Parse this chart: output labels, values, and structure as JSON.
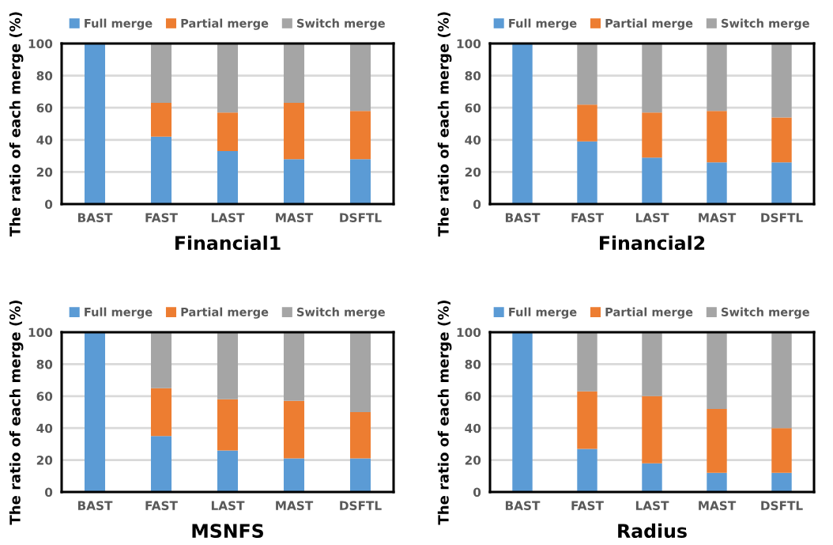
{
  "chart_data": [
    {
      "type": "bar",
      "stacked": true,
      "title": "Financial1",
      "ylabel": "The ratio of each merge (%)",
      "categories": [
        "BAST",
        "FAST",
        "LAST",
        "MAST",
        "DSFTL"
      ],
      "ylim": [
        0,
        100
      ],
      "yticks": [
        0,
        20,
        40,
        60,
        80,
        100
      ],
      "grid": "y",
      "legend": "top",
      "series": [
        {
          "name": "Full merge",
          "color": "#5b9bd5",
          "values": [
            100,
            42,
            33,
            28,
            28
          ]
        },
        {
          "name": "Partial merge",
          "color": "#ed7d31",
          "values": [
            0,
            21,
            24,
            35,
            30
          ]
        },
        {
          "name": "Switch merge",
          "color": "#a5a5a5",
          "values": [
            0,
            37,
            43,
            37,
            42
          ]
        }
      ]
    },
    {
      "type": "bar",
      "stacked": true,
      "title": "Financial2",
      "ylabel": "The ratio of each merge (%)",
      "categories": [
        "BAST",
        "FAST",
        "LAST",
        "MAST",
        "DSFTL"
      ],
      "ylim": [
        0,
        100
      ],
      "yticks": [
        0,
        20,
        40,
        60,
        80,
        100
      ],
      "grid": "y",
      "legend": "top",
      "series": [
        {
          "name": "Full merge",
          "color": "#5b9bd5",
          "values": [
            100,
            39,
            29,
            26,
            26
          ]
        },
        {
          "name": "Partial merge",
          "color": "#ed7d31",
          "values": [
            0,
            23,
            28,
            32,
            28
          ]
        },
        {
          "name": "Switch merge",
          "color": "#a5a5a5",
          "values": [
            0,
            38,
            43,
            42,
            46
          ]
        }
      ]
    },
    {
      "type": "bar",
      "stacked": true,
      "title": "MSNFS",
      "ylabel": "The ratio of each merge (%)",
      "categories": [
        "BAST",
        "FAST",
        "LAST",
        "MAST",
        "DSFTL"
      ],
      "ylim": [
        0,
        100
      ],
      "yticks": [
        0,
        20,
        40,
        60,
        80,
        100
      ],
      "grid": "y",
      "legend": "top",
      "series": [
        {
          "name": "Full merge",
          "color": "#5b9bd5",
          "values": [
            100,
            35,
            26,
            21,
            21
          ]
        },
        {
          "name": "Partial merge",
          "color": "#ed7d31",
          "values": [
            0,
            30,
            32,
            36,
            29
          ]
        },
        {
          "name": "Switch merge",
          "color": "#a5a5a5",
          "values": [
            0,
            35,
            42,
            43,
            50
          ]
        }
      ]
    },
    {
      "type": "bar",
      "stacked": true,
      "title": "Radius",
      "ylabel": "The ratio of each merge (%)",
      "categories": [
        "BAST",
        "FAST",
        "LAST",
        "MAST",
        "DSFTL"
      ],
      "ylim": [
        0,
        100
      ],
      "yticks": [
        0,
        20,
        40,
        60,
        80,
        100
      ],
      "grid": "y",
      "legend": "top",
      "series": [
        {
          "name": "Full merge",
          "color": "#5b9bd5",
          "values": [
            100,
            27,
            18,
            12,
            12
          ]
        },
        {
          "name": "Partial merge",
          "color": "#ed7d31",
          "values": [
            0,
            36,
            42,
            40,
            28
          ]
        },
        {
          "name": "Switch merge",
          "color": "#a5a5a5",
          "values": [
            0,
            37,
            40,
            48,
            60
          ]
        }
      ]
    }
  ]
}
